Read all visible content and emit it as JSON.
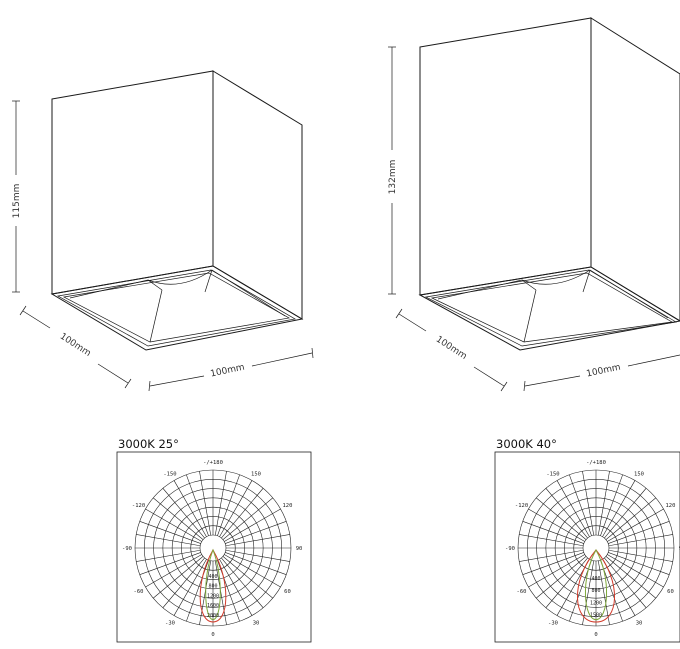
{
  "drawings": [
    {
      "height_label": "115mm",
      "depth_label": "100mm",
      "width_label": "100mm"
    },
    {
      "height_label": "132mm",
      "depth_label": "100mm",
      "width_label": "100mm"
    }
  ],
  "polar_charts": [
    {
      "title": "3000K 25°",
      "angle_labels": [
        "-/+180",
        "150",
        "120",
        "90",
        "60",
        "30",
        "0",
        "-30",
        "-60",
        "-90",
        "-120",
        "-150"
      ],
      "radial_labels": [
        "400",
        "800",
        "1200",
        "1600",
        "2000"
      ],
      "colors": {
        "green": "#7ea83a",
        "red": "#d23a2a"
      }
    },
    {
      "title": "3000K 40°",
      "angle_labels": [
        "-/+180",
        "150",
        "120",
        "90",
        "60",
        "30",
        "0",
        "-30",
        "-60",
        "-90",
        "-120",
        "-150"
      ],
      "radial_labels": [
        "400",
        "800",
        "1200",
        "1500"
      ],
      "colors": {
        "green": "#7ea83a",
        "red": "#d23a2a"
      }
    }
  ]
}
